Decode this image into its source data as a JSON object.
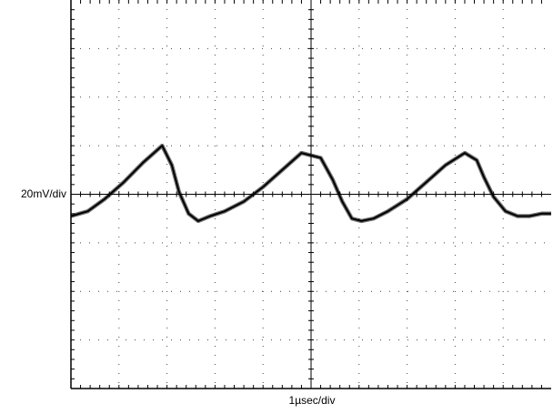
{
  "chart_data": {
    "type": "line",
    "title": "",
    "ylabel": "20mV/div",
    "xlabel": "1µsec/div",
    "grid": true,
    "divisions": {
      "x": 10,
      "y": 8
    },
    "xlim": [
      0,
      10
    ],
    "ylim": [
      -4,
      4
    ],
    "series": [
      {
        "color": "#000000",
        "x": [
          0,
          0.35,
          0.7,
          1.1,
          1.5,
          1.9,
          2.1,
          2.25,
          2.45,
          2.65,
          2.9,
          3.2,
          3.6,
          4.0,
          4.4,
          4.8,
          5.2,
          5.45,
          5.65,
          5.85,
          6.05,
          6.3,
          6.6,
          7.0,
          7.4,
          7.8,
          8.2,
          8.45,
          8.6,
          8.8,
          9.05,
          9.3,
          9.55,
          9.8,
          10.0
        ],
        "y": [
          -0.45,
          -0.35,
          -0.1,
          0.25,
          0.65,
          1.0,
          0.6,
          0.05,
          -0.4,
          -0.55,
          -0.45,
          -0.35,
          -0.15,
          0.15,
          0.5,
          0.85,
          0.75,
          0.3,
          -0.15,
          -0.5,
          -0.55,
          -0.5,
          -0.35,
          -0.1,
          0.25,
          0.6,
          0.85,
          0.7,
          0.35,
          -0.05,
          -0.35,
          -0.45,
          -0.45,
          -0.4,
          -0.4
        ]
      }
    ]
  }
}
